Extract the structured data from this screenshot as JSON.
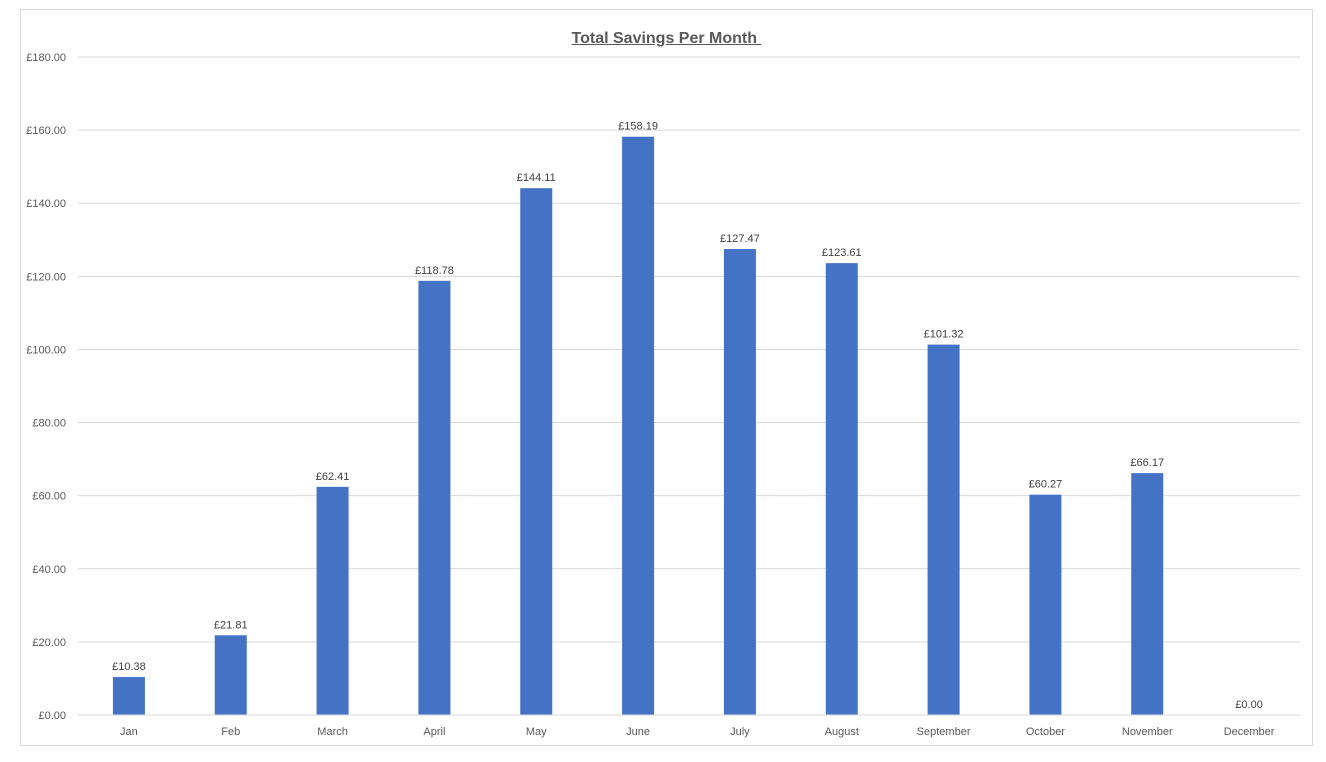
{
  "chart_data": {
    "type": "bar",
    "title": "Total Savings Per Month ",
    "categories": [
      "Jan",
      "Feb",
      "March",
      "April",
      "May",
      "June",
      "July",
      "August",
      "September",
      "October",
      "November",
      "December"
    ],
    "values": [
      10.38,
      21.81,
      62.41,
      118.78,
      144.11,
      158.19,
      127.47,
      123.61,
      101.32,
      60.27,
      66.17,
      0.0
    ],
    "data_labels": [
      "£10.38",
      "£21.81",
      "£62.41",
      "£118.78",
      "£144.11",
      "£158.19",
      "£127.47",
      "£123.61",
      "£101.32",
      "£60.27",
      "£66.17",
      "£0.00"
    ],
    "y_ticks": [
      0,
      20,
      40,
      60,
      80,
      100,
      120,
      140,
      160,
      180
    ],
    "y_tick_labels": [
      "£0.00",
      "£20.00",
      "£40.00",
      "£60.00",
      "£80.00",
      "£100.00",
      "£120.00",
      "£140.00",
      "£160.00",
      "£180.00"
    ],
    "ylim": [
      0,
      180
    ],
    "xlabel": "",
    "ylabel": "",
    "grid": true,
    "legend": "none",
    "bar_color": "#4472C4",
    "grid_color": "#d9d9d9"
  }
}
